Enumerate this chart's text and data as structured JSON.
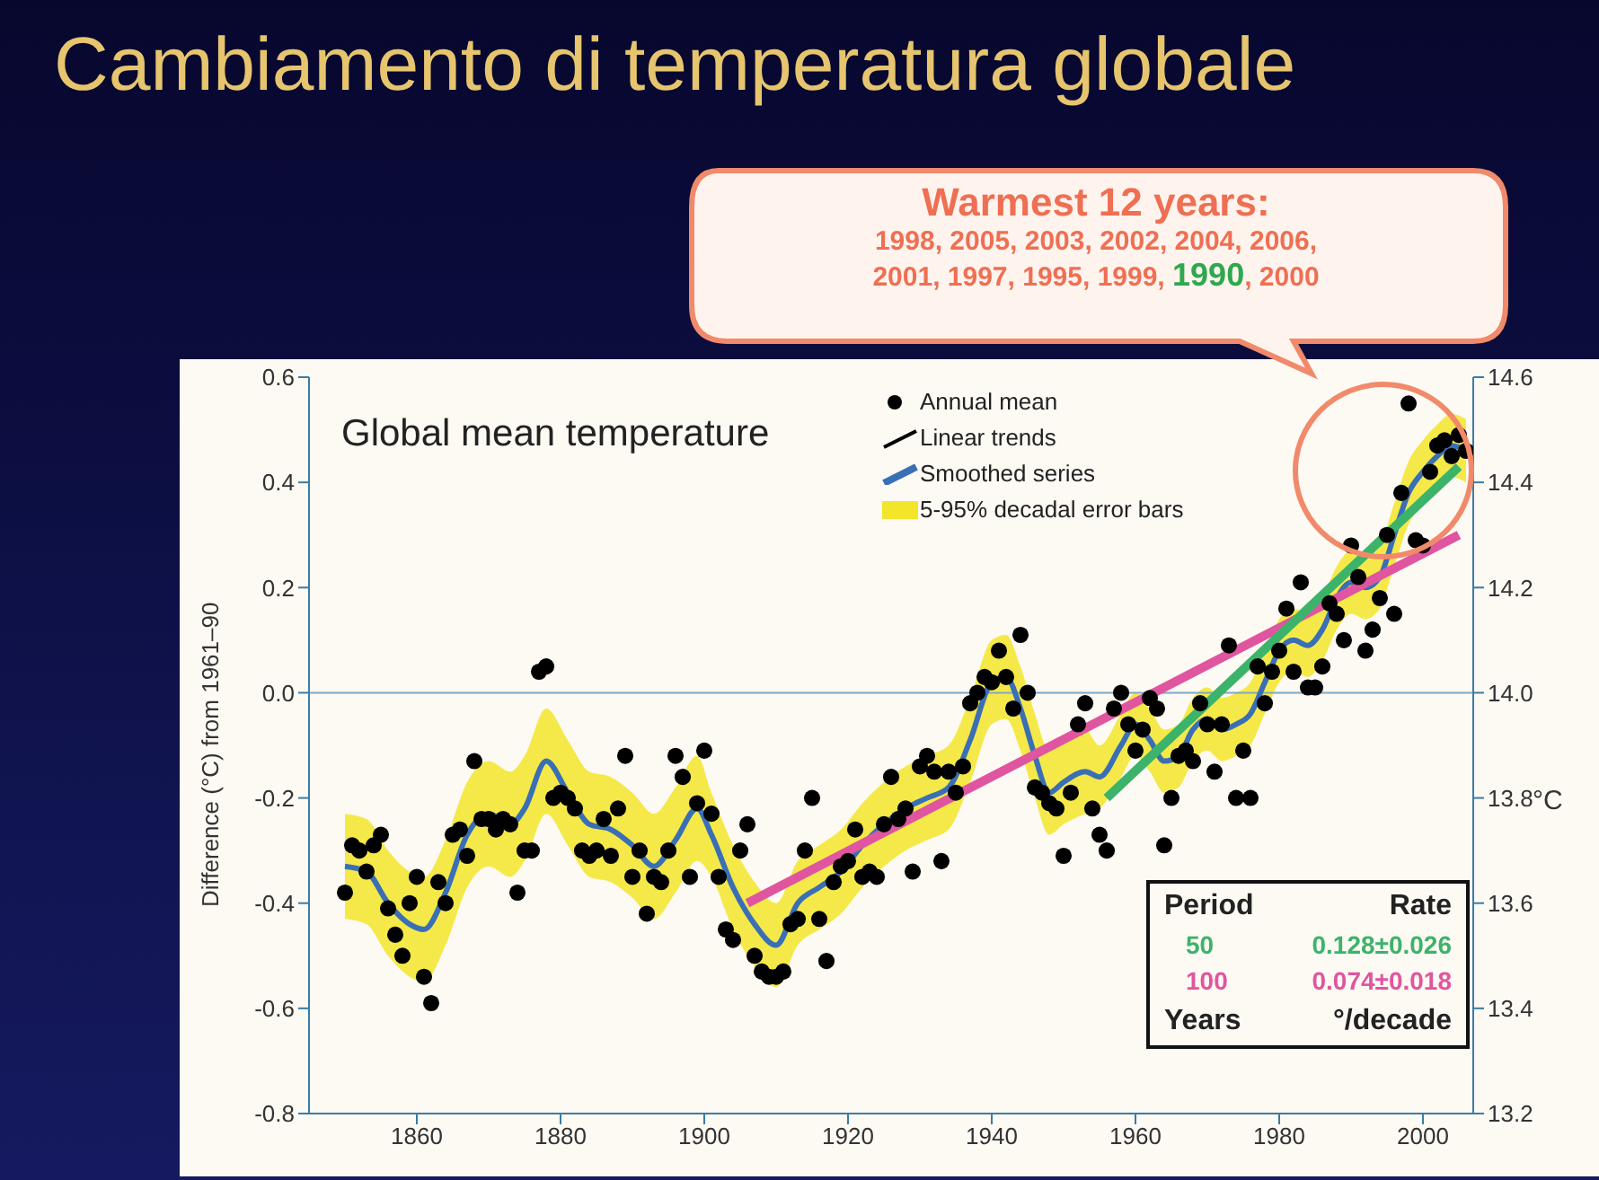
{
  "chart_data": {
    "type": "scatter",
    "title": "Cambiamento di temperatura globale",
    "subtitle": "Global mean temperature",
    "ylabel": "Difference (°C) from 1961–90",
    "y2label": "°C",
    "xlim": [
      1845,
      2007
    ],
    "xticks": [
      1860,
      1880,
      1900,
      1920,
      1940,
      1960,
      1980,
      2000
    ],
    "ylim": [
      -0.8,
      0.6
    ],
    "yticks": [
      -0.8,
      -0.6,
      -0.4,
      -0.2,
      {
        "value": 0,
        "label": "0.0"
      },
      0.2,
      0.4,
      0.6
    ],
    "y2lim": [
      13.2,
      14.6
    ],
    "y2ticks": [
      13.2,
      13.4,
      13.6,
      13.8,
      {
        "value": 14,
        "label": "14.0"
      },
      14.2,
      14.4,
      14.6
    ],
    "legend": "top right",
    "line_style": "solid",
    "ref_lines": [
      {
        "axis": "y",
        "value": 0,
        "color": "#7fa8c8"
      }
    ],
    "series": [
      {
        "name": "Annual mean",
        "marker": "circle",
        "color": "#000000",
        "x": [
          1850,
          1851,
          1852,
          1853,
          1854,
          1855,
          1856,
          1857,
          1858,
          1859,
          1860,
          1861,
          1862,
          1863,
          1864,
          1865,
          1866,
          1867,
          1868,
          1869,
          1870,
          1871,
          1872,
          1873,
          1874,
          1875,
          1876,
          1877,
          1878,
          1879,
          1880,
          1881,
          1882,
          1883,
          1884,
          1885,
          1886,
          1887,
          1888,
          1889,
          1890,
          1891,
          1892,
          1893,
          1894,
          1895,
          1896,
          1897,
          1898,
          1899,
          1900,
          1901,
          1902,
          1903,
          1904,
          1905,
          1906,
          1907,
          1908,
          1909,
          1910,
          1911,
          1912,
          1913,
          1914,
          1915,
          1916,
          1917,
          1918,
          1919,
          1920,
          1921,
          1922,
          1923,
          1924,
          1925,
          1926,
          1927,
          1928,
          1929,
          1930,
          1931,
          1932,
          1933,
          1934,
          1935,
          1936,
          1937,
          1938,
          1939,
          1940,
          1941,
          1942,
          1943,
          1944,
          1945,
          1946,
          1947,
          1948,
          1949,
          1950,
          1951,
          1952,
          1953,
          1954,
          1955,
          1956,
          1957,
          1958,
          1959,
          1960,
          1961,
          1962,
          1963,
          1964,
          1965,
          1966,
          1967,
          1968,
          1969,
          1970,
          1971,
          1972,
          1973,
          1974,
          1975,
          1976,
          1977,
          1978,
          1979,
          1980,
          1981,
          1982,
          1983,
          1984,
          1985,
          1986,
          1987,
          1988,
          1989,
          1990,
          1991,
          1992,
          1993,
          1994,
          1995,
          1996,
          1997,
          1998,
          1999,
          2000,
          2001,
          2002,
          2003,
          2004,
          2005,
          2006
        ],
        "values": [
          -0.38,
          -0.29,
          -0.3,
          -0.34,
          -0.29,
          -0.27,
          -0.41,
          -0.46,
          -0.5,
          -0.4,
          -0.35,
          -0.54,
          -0.59,
          -0.36,
          -0.4,
          -0.27,
          -0.26,
          -0.31,
          -0.13,
          -0.24,
          -0.24,
          -0.26,
          -0.24,
          -0.25,
          -0.38,
          -0.3,
          -0.3,
          0.04,
          0.05,
          -0.2,
          -0.19,
          -0.2,
          -0.22,
          -0.3,
          -0.31,
          -0.3,
          -0.24,
          -0.31,
          -0.22,
          -0.12,
          -0.35,
          -0.3,
          -0.42,
          -0.35,
          -0.36,
          -0.3,
          -0.12,
          -0.16,
          -0.35,
          -0.21,
          -0.11,
          -0.23,
          -0.35,
          -0.45,
          -0.47,
          -0.3,
          -0.25,
          -0.5,
          -0.53,
          -0.54,
          -0.54,
          -0.53,
          -0.44,
          -0.43,
          -0.3,
          -0.2,
          -0.43,
          -0.51,
          -0.36,
          -0.33,
          -0.32,
          -0.26,
          -0.35,
          -0.34,
          -0.35,
          -0.25,
          -0.16,
          -0.24,
          -0.22,
          -0.34,
          -0.14,
          -0.12,
          -0.15,
          -0.32,
          -0.15,
          -0.19,
          -0.14,
          -0.02,
          0.0,
          0.03,
          0.02,
          0.08,
          0.03,
          -0.03,
          0.11,
          0.0,
          -0.18,
          -0.19,
          -0.21,
          -0.22,
          -0.31,
          -0.19,
          -0.06,
          -0.02,
          -0.22,
          -0.27,
          -0.3,
          -0.03,
          0.0,
          -0.06,
          -0.11,
          -0.07,
          -0.01,
          -0.03,
          -0.29,
          -0.2,
          -0.12,
          -0.11,
          -0.13,
          -0.02,
          -0.06,
          -0.15,
          -0.06,
          0.09,
          -0.2,
          -0.11,
          -0.2,
          0.05,
          -0.02,
          0.04,
          0.08,
          0.16,
          0.04,
          0.21,
          0.01,
          0.01,
          0.05,
          0.17,
          0.15,
          0.1,
          0.28,
          0.22,
          0.08,
          0.12,
          0.18,
          0.3,
          0.15,
          0.38,
          0.55,
          0.29,
          0.28,
          0.42,
          0.47,
          0.48,
          0.45,
          0.49,
          0.46
        ]
      },
      {
        "type": "line",
        "name": "Smoothed series",
        "color": "#3a6fb5",
        "x": [
          1850,
          1853,
          1856,
          1859,
          1861,
          1864,
          1867,
          1870,
          1873,
          1875,
          1878,
          1881,
          1884,
          1887,
          1890,
          1893,
          1896,
          1899,
          1901,
          1904,
          1907,
          1910,
          1913,
          1916,
          1919,
          1922,
          1925,
          1928,
          1931,
          1934,
          1937,
          1940,
          1942,
          1944,
          1946,
          1948,
          1950,
          1953,
          1955,
          1958,
          1960,
          1962,
          1964,
          1966,
          1968,
          1970,
          1972,
          1974,
          1976,
          1978,
          1980,
          1982,
          1984,
          1986,
          1988,
          1990,
          1992,
          1994,
          1996,
          1998,
          2000,
          2002,
          2004,
          2006
        ],
        "values": [
          -0.33,
          -0.34,
          -0.4,
          -0.44,
          -0.45,
          -0.38,
          -0.27,
          -0.23,
          -0.25,
          -0.22,
          -0.13,
          -0.19,
          -0.25,
          -0.26,
          -0.29,
          -0.33,
          -0.28,
          -0.22,
          -0.27,
          -0.37,
          -0.44,
          -0.48,
          -0.4,
          -0.37,
          -0.34,
          -0.29,
          -0.25,
          -0.22,
          -0.2,
          -0.18,
          -0.09,
          0.02,
          0.03,
          -0.03,
          -0.12,
          -0.19,
          -0.17,
          -0.15,
          -0.16,
          -0.1,
          -0.06,
          -0.09,
          -0.13,
          -0.12,
          -0.07,
          -0.05,
          -0.07,
          -0.06,
          -0.04,
          0.02,
          0.08,
          0.1,
          0.09,
          0.12,
          0.18,
          0.21,
          0.2,
          0.22,
          0.3,
          0.38,
          0.42,
          0.45,
          0.47,
          0.46
        ],
        "lower": [
          -0.43,
          -0.44,
          -0.5,
          -0.54,
          -0.55,
          -0.48,
          -0.37,
          -0.33,
          -0.35,
          -0.32,
          -0.23,
          -0.29,
          -0.35,
          -0.36,
          -0.39,
          -0.43,
          -0.38,
          -0.32,
          -0.35,
          -0.45,
          -0.52,
          -0.56,
          -0.48,
          -0.45,
          -0.42,
          -0.37,
          -0.33,
          -0.3,
          -0.28,
          -0.26,
          -0.17,
          -0.06,
          -0.05,
          -0.11,
          -0.2,
          -0.27,
          -0.25,
          -0.23,
          -0.22,
          -0.16,
          -0.12,
          -0.15,
          -0.19,
          -0.18,
          -0.13,
          -0.11,
          -0.13,
          -0.12,
          -0.1,
          -0.04,
          0.02,
          0.04,
          0.03,
          0.06,
          0.12,
          0.15,
          0.14,
          0.16,
          0.24,
          0.32,
          0.36,
          0.39,
          0.41,
          0.4
        ],
        "upper": [
          -0.23,
          -0.24,
          -0.3,
          -0.34,
          -0.35,
          -0.28,
          -0.17,
          -0.13,
          -0.15,
          -0.12,
          -0.03,
          -0.09,
          -0.15,
          -0.16,
          -0.19,
          -0.23,
          -0.18,
          -0.12,
          -0.19,
          -0.29,
          -0.36,
          -0.4,
          -0.32,
          -0.29,
          -0.26,
          -0.21,
          -0.17,
          -0.14,
          -0.12,
          -0.1,
          -0.01,
          0.1,
          0.11,
          0.05,
          -0.04,
          -0.11,
          -0.09,
          -0.07,
          -0.1,
          -0.04,
          0.0,
          -0.03,
          -0.07,
          -0.06,
          -0.01,
          0.01,
          -0.01,
          0.0,
          0.02,
          0.08,
          0.14,
          0.16,
          0.15,
          0.18,
          0.24,
          0.27,
          0.26,
          0.28,
          0.36,
          0.44,
          0.48,
          0.51,
          0.53,
          0.52
        ]
      },
      {
        "type": "line",
        "name": "100",
        "color": "#e0559f",
        "x": [
          1906,
          2005
        ],
        "values": [
          -0.4,
          0.3
        ]
      },
      {
        "type": "line",
        "name": "50",
        "color": "#3cb36a",
        "x": [
          1956,
          2005
        ],
        "values": [
          -0.2,
          0.43
        ]
      }
    ],
    "annotations": [
      "Warmest 12 years:",
      "1998, 2005, 2003, 2002, 2004, 2006,",
      "2001, 1997, 1995, 1999,",
      "1990",
      ", 2000",
      "Linear trends",
      "5-95% decadal error bars",
      "Period",
      "Rate",
      "0.074±0.018",
      "0.128±0.026",
      "Years",
      "°/decade"
    ]
  }
}
